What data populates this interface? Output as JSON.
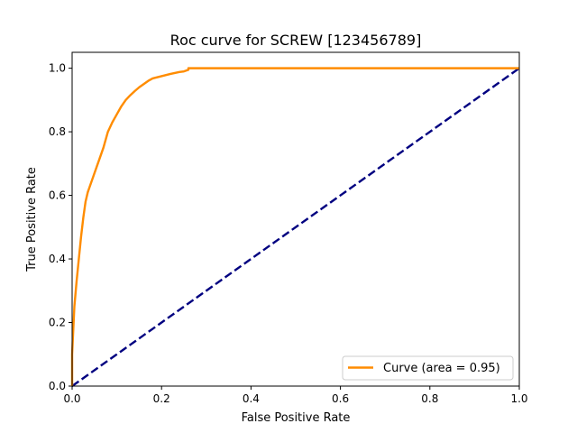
{
  "chart_data": {
    "type": "line",
    "title": "Roc curve for SCREW [123456789]",
    "xlabel": "False Positive Rate",
    "ylabel": "True Positive Rate",
    "xlim": [
      0.0,
      1.0
    ],
    "ylim": [
      0.0,
      1.05
    ],
    "grid": false,
    "legend_position": "lower right",
    "x_ticks": [
      "0.0",
      "0.2",
      "0.4",
      "0.6",
      "0.8",
      "1.0"
    ],
    "y_ticks": [
      "0.0",
      "0.2",
      "0.4",
      "0.6",
      "0.8",
      "1.0"
    ],
    "series": [
      {
        "name": "Curve (area = 0.95)",
        "color": "#ff8c00",
        "style": "solid",
        "x": [
          0.0,
          0.0,
          0.005,
          0.01,
          0.015,
          0.02,
          0.025,
          0.03,
          0.035,
          0.04,
          0.05,
          0.06,
          0.07,
          0.08,
          0.09,
          0.1,
          0.11,
          0.12,
          0.13,
          0.14,
          0.15,
          0.16,
          0.17,
          0.18,
          0.2,
          0.22,
          0.24,
          0.25,
          0.26,
          0.26,
          0.3,
          0.4,
          0.5,
          0.6,
          0.7,
          0.8,
          0.9,
          1.0
        ],
        "y": [
          0.0,
          0.1,
          0.25,
          0.33,
          0.4,
          0.47,
          0.53,
          0.58,
          0.61,
          0.63,
          0.67,
          0.71,
          0.75,
          0.8,
          0.83,
          0.855,
          0.88,
          0.9,
          0.915,
          0.928,
          0.94,
          0.95,
          0.96,
          0.968,
          0.975,
          0.982,
          0.988,
          0.99,
          0.995,
          1.0,
          1.0,
          1.0,
          1.0,
          1.0,
          1.0,
          1.0,
          1.0,
          1.0
        ]
      },
      {
        "name": "",
        "color": "#000080",
        "style": "dashed",
        "x": [
          0.0,
          1.0
        ],
        "y": [
          0.0,
          1.0
        ]
      }
    ]
  }
}
